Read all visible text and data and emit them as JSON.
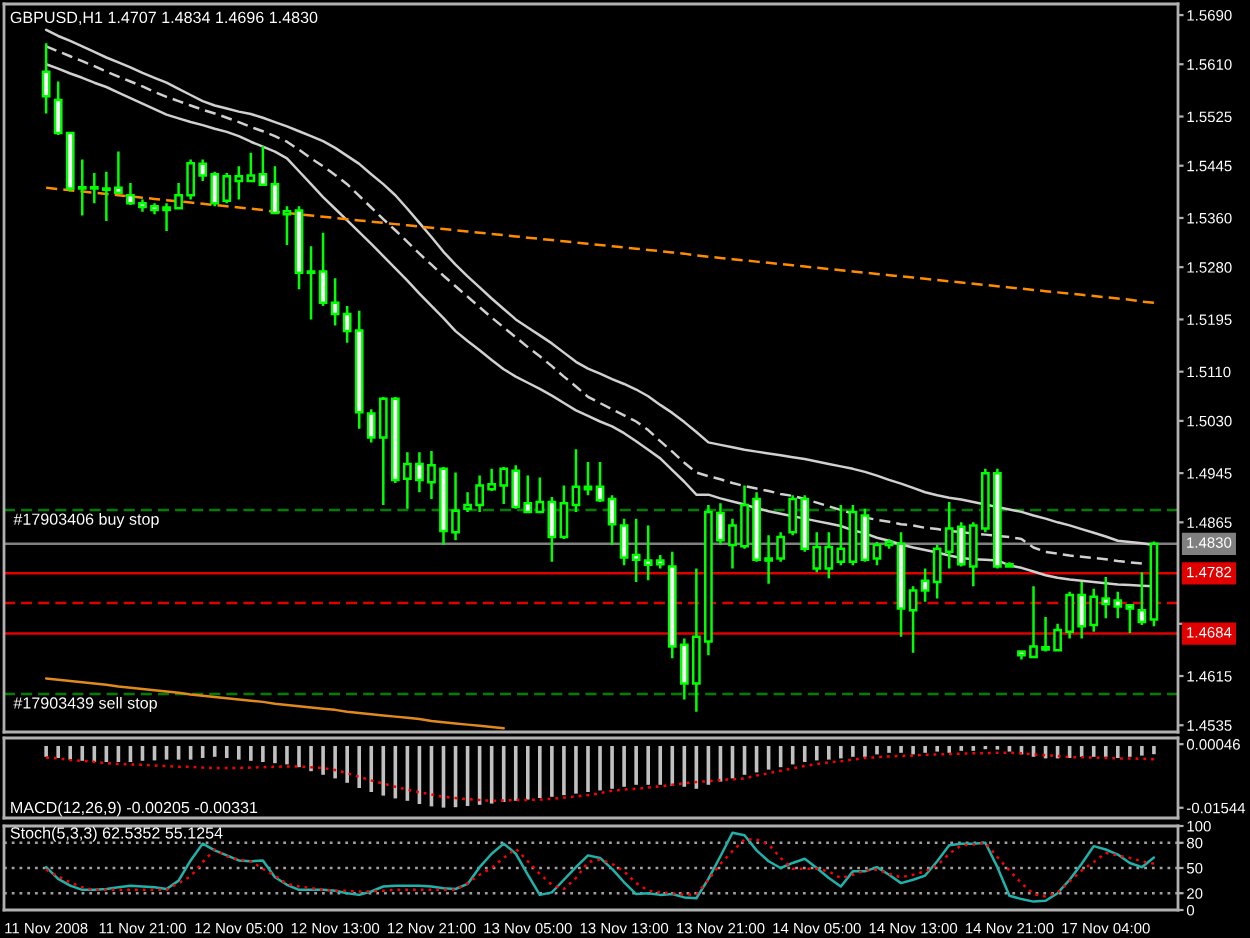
{
  "chart_data": [
    {
      "type": "candlestick",
      "title": "GBPUSD,H1 1.4707 1.4834 1.4696 1.4830",
      "categories": [
        null,
        null,
        null,
        null,
        null,
        null,
        null,
        null,
        null,
        null,
        null,
        null,
        null,
        null,
        null,
        null,
        null,
        null,
        null,
        null,
        null,
        null,
        null,
        null,
        null,
        null,
        null,
        null,
        null,
        null,
        null,
        null,
        null,
        null,
        null,
        null,
        null,
        null,
        null,
        null,
        null,
        null,
        null,
        null,
        null,
        null,
        null,
        null,
        null,
        null,
        null,
        null,
        null,
        null,
        null,
        null,
        null,
        null,
        null,
        null,
        null,
        null,
        null,
        null,
        null,
        null,
        null,
        null,
        null,
        null,
        null,
        null,
        null,
        null,
        null,
        null,
        null,
        null,
        null,
        null,
        null,
        null,
        null,
        null,
        null,
        null,
        null,
        null,
        null,
        null,
        null,
        null,
        null
      ],
      "ohlc": [
        [
          1.5598,
          1.5644,
          1.553,
          1.5558
        ],
        [
          1.5552,
          1.5582,
          1.5495,
          1.5498
        ],
        [
          1.5498,
          1.55,
          1.5403,
          1.5408
        ],
        [
          1.5408,
          1.5455,
          1.5364,
          1.541
        ],
        [
          1.541,
          1.5433,
          1.5384,
          1.5408
        ],
        [
          1.5408,
          1.5435,
          1.5355,
          1.5406
        ],
        [
          1.5409,
          1.5468,
          1.5399,
          1.5401
        ],
        [
          1.5397,
          1.5417,
          1.5381,
          1.5384
        ],
        [
          1.5384,
          1.539,
          1.537,
          1.5378
        ],
        [
          1.5379,
          1.5384,
          1.5366,
          1.5373
        ],
        [
          1.5377,
          1.5384,
          1.5339,
          1.5373
        ],
        [
          1.5376,
          1.5417,
          1.5374,
          1.5397
        ],
        [
          1.5397,
          1.5455,
          1.539,
          1.5449
        ],
        [
          1.5448,
          1.5455,
          1.542,
          1.5429
        ],
        [
          1.5431,
          1.5435,
          1.5379,
          1.5384
        ],
        [
          1.5388,
          1.5433,
          1.5384,
          1.5428
        ],
        [
          1.542,
          1.5444,
          1.539,
          1.5428
        ],
        [
          1.542,
          1.5466,
          1.5419,
          1.5429
        ],
        [
          1.5431,
          1.5477,
          1.5412,
          1.5414
        ],
        [
          1.5415,
          1.5444,
          1.5366,
          1.5368
        ],
        [
          1.5366,
          1.5379,
          1.5316,
          1.5371
        ],
        [
          1.5372,
          1.5379,
          1.5244,
          1.5271
        ],
        [
          1.5271,
          1.5314,
          1.5195,
          1.5273
        ],
        [
          1.5273,
          1.5336,
          1.5217,
          1.5222
        ],
        [
          1.5222,
          1.5262,
          1.5185,
          1.5204
        ],
        [
          1.5204,
          1.5217,
          1.5157,
          1.5176
        ],
        [
          1.5177,
          1.5209,
          1.5017,
          1.5044
        ],
        [
          1.5042,
          1.5049,
          1.4995,
          1.5003
        ],
        [
          1.5003,
          1.5069,
          1.4893,
          1.5066
        ],
        [
          1.5066,
          1.5069,
          1.4929,
          1.4934
        ],
        [
          1.4936,
          1.4979,
          1.4887,
          1.496
        ],
        [
          1.496,
          1.4979,
          1.4914,
          1.4934
        ],
        [
          1.493,
          1.4981,
          1.4903,
          1.4958
        ],
        [
          1.4952,
          1.4955,
          1.4828,
          1.4851
        ],
        [
          1.4849,
          1.4946,
          1.4836,
          1.4884
        ],
        [
          1.4887,
          1.4914,
          1.4882,
          1.4893
        ],
        [
          1.4893,
          1.4941,
          1.4882,
          1.4925
        ],
        [
          1.4919,
          1.4952,
          1.4916,
          1.4927
        ],
        [
          1.4925,
          1.4955,
          1.4895,
          1.4952
        ],
        [
          1.4949,
          1.4958,
          1.4887,
          1.489
        ],
        [
          1.4896,
          1.4941,
          1.488,
          1.4882
        ],
        [
          1.4882,
          1.4938,
          1.488,
          1.4898
        ],
        [
          1.4898,
          1.4906,
          1.4801,
          1.4841
        ],
        [
          1.4841,
          1.4925,
          1.4838,
          1.4896
        ],
        [
          1.4893,
          1.4984,
          1.4882,
          1.4923
        ],
        [
          1.4919,
          1.4963,
          1.4909,
          1.4923
        ],
        [
          1.4923,
          1.4963,
          1.4898,
          1.4901
        ],
        [
          1.4903,
          1.4909,
          1.4828,
          1.4862
        ],
        [
          1.486,
          1.4871,
          1.4795,
          1.4808
        ],
        [
          1.4812,
          1.4871,
          1.4768,
          1.4804
        ],
        [
          1.4803,
          1.486,
          1.4771,
          1.4796
        ],
        [
          1.4803,
          1.4812,
          1.479,
          1.4797
        ],
        [
          1.4793,
          1.4817,
          1.4644,
          1.4663
        ],
        [
          1.4666,
          1.4676,
          1.4577,
          1.4603
        ],
        [
          1.4603,
          1.479,
          1.4557,
          1.4679
        ],
        [
          1.4671,
          1.4893,
          1.4649,
          1.4882
        ],
        [
          1.488,
          1.4896,
          1.4828,
          1.4836
        ],
        [
          1.4828,
          1.4871,
          1.479,
          1.486
        ],
        [
          1.4826,
          1.4925,
          1.4822,
          1.4893
        ],
        [
          1.4903,
          1.4914,
          1.4801,
          1.4804
        ],
        [
          1.4806,
          1.4844,
          1.4765,
          1.4803
        ],
        [
          1.4806,
          1.4849,
          1.4801,
          1.4841
        ],
        [
          1.4849,
          1.4909,
          1.4844,
          1.4903
        ],
        [
          1.4903,
          1.4909,
          1.4817,
          1.4822
        ],
        [
          1.479,
          1.4849,
          1.4784,
          1.4825
        ],
        [
          1.479,
          1.4849,
          1.4774,
          1.4825
        ],
        [
          1.4801,
          1.4893,
          1.4795,
          1.4822
        ],
        [
          1.4801,
          1.4893,
          1.4795,
          1.4882
        ],
        [
          1.4876,
          1.4887,
          1.4801,
          1.4804
        ],
        [
          1.4806,
          1.4833,
          1.4795,
          1.4828
        ],
        [
          1.4828,
          1.4838,
          1.4822,
          1.4833
        ],
        [
          1.483,
          1.4849,
          1.4679,
          1.4725
        ],
        [
          1.4722,
          1.4761,
          1.4653,
          1.4754
        ],
        [
          1.477,
          1.479,
          1.4736,
          1.4754
        ],
        [
          1.4768,
          1.4828,
          1.4741,
          1.4822
        ],
        [
          1.4817,
          1.4898,
          1.479,
          1.4855
        ],
        [
          1.4858,
          1.4865,
          1.4793,
          1.4797
        ],
        [
          1.4793,
          1.4865,
          1.4761,
          1.486
        ],
        [
          1.4855,
          1.4952,
          1.4849,
          1.4945
        ],
        [
          1.4945,
          1.4952,
          1.479,
          1.4793
        ],
        [
          1.4797,
          1.48,
          1.4791,
          1.4793
        ],
        [
          1.4655,
          1.4657,
          1.4642,
          1.4649
        ],
        [
          1.4646,
          1.4761,
          1.4644,
          1.4663
        ],
        [
          1.4658,
          1.4711,
          1.4655,
          1.4662
        ],
        [
          1.4657,
          1.47,
          1.4655,
          1.469
        ],
        [
          1.4687,
          1.4752,
          1.4676,
          1.4747
        ],
        [
          1.4747,
          1.4768,
          1.4676,
          1.4696
        ],
        [
          1.4698,
          1.4757,
          1.4687,
          1.4744
        ],
        [
          1.4741,
          1.4776,
          1.4709,
          1.4732
        ],
        [
          1.4738,
          1.4752,
          1.4709,
          1.4728
        ],
        [
          1.473,
          1.4732,
          1.4685,
          1.4725
        ],
        [
          1.4722,
          1.4784,
          1.4698,
          1.4703
        ],
        [
          1.4707,
          1.4834,
          1.4696,
          1.483
        ]
      ],
      "color": "#00ff00",
      "colors": [
        "#ffffff",
        "#ffffff",
        "#ffffff",
        "#000000",
        "#ffffff",
        "#ffffff",
        "#ffffff",
        "#ffffff",
        "#ffffff",
        "#ffffff",
        "#ffffff",
        "#000000",
        "#000000",
        "#ffffff",
        "#ffffff",
        "#000000",
        "#000000",
        "#000000",
        "#ffffff",
        "#ffffff",
        "#000000",
        "#ffffff",
        "#000000",
        "#ffffff",
        "#ffffff",
        "#ffffff",
        "#ffffff",
        "#ffffff",
        "#000000",
        "#ffffff",
        "#000000",
        "#ffffff",
        "#000000",
        "#ffffff",
        "#000000",
        "#000000",
        "#000000",
        "#000000",
        "#000000",
        "#ffffff",
        "#ffffff",
        "#000000",
        "#ffffff",
        "#000000",
        "#000000",
        "#000000",
        "#ffffff",
        "#ffffff",
        "#ffffff",
        "#ffffff",
        "#ffffff",
        "#ffffff",
        "#ffffff",
        "#ffffff",
        "#000000",
        "#000000",
        "#ffffff",
        "#000000",
        "#000000",
        "#ffffff",
        "#ffffff",
        "#000000",
        "#000000",
        "#ffffff",
        "#000000",
        "#000000",
        "#000000",
        "#000000",
        "#ffffff",
        "#000000",
        "#000000",
        "#ffffff",
        "#000000",
        "#ffffff",
        "#000000",
        "#000000",
        "#ffffff",
        "#000000",
        "#000000",
        "#ffffff",
        "#ffffff",
        "#ffffff",
        "#000000",
        "#000000",
        "#000000",
        "#000000",
        "#ffffff",
        "#000000",
        "#ffffff",
        "#ffffff",
        "#ffffff",
        "#ffffff",
        "#000000"
      ],
      "series": [
        {
          "type": "line",
          "color": "#d0d0d0",
          "values": [
            1.5666,
            1.5656,
            1.5648,
            1.5639,
            1.563,
            1.5621,
            1.5613,
            1.5605,
            1.5596,
            1.5588,
            1.558,
            1.557,
            1.556,
            1.555,
            1.5543,
            1.5538,
            1.5533,
            1.5529,
            1.5523,
            1.5516,
            1.5509,
            1.5501,
            1.5493,
            1.5485,
            1.5474,
            1.5461,
            1.5448,
            1.5431,
            1.5415,
            1.5397,
            1.5375,
            1.5352,
            1.5329,
            1.5305,
            1.5284,
            1.5265,
            1.5247,
            1.5229,
            1.5212,
            1.5195,
            1.5182,
            1.5169,
            1.5156,
            1.5141,
            1.5126,
            1.5115,
            1.5107,
            1.5098,
            1.509,
            1.5081,
            1.507,
            1.5056,
            1.5043,
            1.5028,
            1.5012,
            1.4995,
            1.4991,
            1.4987,
            1.4983,
            1.498,
            1.4977,
            1.4974,
            1.4971,
            1.4968,
            1.4964,
            1.496,
            1.4956,
            1.4952,
            1.4947,
            1.4941,
            1.4934,
            1.4928,
            1.4921,
            1.4914,
            1.4909,
            1.4905,
            1.4902,
            1.4898,
            1.4894,
            1.489,
            1.4886,
            1.4882,
            1.4876,
            1.4871,
            1.4865,
            1.486,
            1.4854,
            1.4848,
            1.4842,
            1.4835,
            1.4833,
            1.4831,
            1.4828
          ]
        },
        {
          "type": "line",
          "color": "#d0d0d0",
          "line_style": "dashed",
          "values": [
            1.5639,
            1.5631,
            1.5623,
            1.5615,
            1.5607,
            1.5598,
            1.559,
            1.5582,
            1.5574,
            1.5565,
            1.5557,
            1.555,
            1.5543,
            1.5536,
            1.553,
            1.5523,
            1.5516,
            1.5508,
            1.5501,
            1.5493,
            1.5484,
            1.5471,
            1.5457,
            1.5444,
            1.543,
            1.5415,
            1.5396,
            1.5377,
            1.5358,
            1.534,
            1.5321,
            1.5302,
            1.5284,
            1.5266,
            1.5249,
            1.5232,
            1.5215,
            1.5198,
            1.5182,
            1.5166,
            1.515,
            1.5135,
            1.5119,
            1.5102,
            1.5086,
            1.5069,
            1.5059,
            1.5049,
            1.5039,
            1.5029,
            1.5015,
            1.4997,
            1.498,
            1.4962,
            1.4946,
            1.494,
            1.4935,
            1.4929,
            1.4924,
            1.492,
            1.4916,
            1.4911,
            1.4908,
            1.4903,
            1.4897,
            1.4891,
            1.4885,
            1.4879,
            1.4873,
            1.4869,
            1.4866,
            1.4862,
            1.486,
            1.4856,
            1.4854,
            1.4851,
            1.4849,
            1.4847,
            1.4845,
            1.4843,
            1.4841,
            1.4838,
            1.4824,
            1.4817,
            1.4814,
            1.4811,
            1.4809,
            1.4807,
            1.4805,
            1.4802,
            1.48,
            1.4798,
            null
          ]
        },
        {
          "type": "line",
          "color": "#d0d0d0",
          "values": [
            1.561,
            1.5603,
            1.5595,
            1.5588,
            1.558,
            1.5573,
            1.5564,
            1.5555,
            1.5546,
            1.5537,
            1.5528,
            1.5522,
            1.5516,
            1.5511,
            1.5505,
            1.55,
            1.5493,
            1.5484,
            1.5476,
            1.5468,
            1.5457,
            1.5436,
            1.5415,
            1.5394,
            1.5375,
            1.5356,
            1.5337,
            1.5318,
            1.5298,
            1.5278,
            1.5258,
            1.5237,
            1.5217,
            1.5197,
            1.5176,
            1.516,
            1.5145,
            1.5129,
            1.5114,
            1.5102,
            1.5092,
            1.5082,
            1.5071,
            1.5059,
            1.5047,
            1.5038,
            1.5029,
            1.5021,
            1.501,
            1.4997,
            1.4983,
            1.4969,
            1.495,
            1.4931,
            1.491,
            1.491,
            1.4904,
            1.4899,
            1.4894,
            1.4888,
            1.4883,
            1.4879,
            1.4875,
            1.4871,
            1.4867,
            1.4863,
            1.4859,
            1.4852,
            1.4847,
            1.484,
            1.4835,
            1.4829,
            1.4824,
            1.482,
            1.4816,
            1.4811,
            1.4807,
            1.4805,
            1.4804,
            1.4803,
            1.4795,
            1.4791,
            1.4785,
            1.4779,
            1.4775,
            1.4772,
            1.477,
            1.4768,
            1.4766,
            1.4764,
            1.4763,
            1.4762,
            1.4761
          ]
        },
        {
          "type": "line",
          "color": "#ff8c00",
          "line_style": "dashed",
          "values": [
            1.5409,
            1.5407,
            1.5405,
            1.5403,
            1.5401,
            1.5399,
            1.5397,
            1.5395,
            1.5393,
            1.5391,
            1.5389,
            1.5387,
            1.5385,
            1.5383,
            1.5381,
            1.5379,
            1.5377,
            1.5375,
            1.5373,
            1.537,
            1.5368,
            1.5366,
            1.5364,
            1.5362,
            1.536,
            1.5358,
            1.5356,
            1.5354,
            1.5352,
            1.535,
            1.5348,
            1.5346,
            1.5344,
            1.5342,
            1.534,
            1.5338,
            1.5336,
            1.5334,
            1.5332,
            1.533,
            1.5328,
            1.5326,
            1.5324,
            1.5322,
            1.532,
            1.5318,
            1.5316,
            1.5314,
            1.5312,
            1.531,
            1.5308,
            1.5306,
            1.5304,
            1.5302,
            1.5299,
            1.5297,
            1.5295,
            1.5293,
            1.5291,
            1.5289,
            1.5287,
            1.5285,
            1.5283,
            1.5281,
            1.5279,
            1.5277,
            1.5275,
            1.5273,
            1.5271,
            1.5269,
            1.5267,
            1.5265,
            1.5263,
            1.5261,
            1.5259,
            1.5257,
            1.5255,
            1.5253,
            1.5251,
            1.5249,
            1.5247,
            1.5245,
            1.5243,
            1.5241,
            1.5239,
            1.5237,
            1.5235,
            1.5233,
            1.5231,
            1.5229,
            1.5227,
            1.5224,
            1.5222
          ]
        },
        {
          "type": "line",
          "color": "#e08a1e",
          "values": [
            1.4611,
            1.4609,
            1.4607,
            1.4605,
            1.4603,
            1.4601,
            1.4598,
            1.4596,
            1.4594,
            1.4592,
            1.459,
            1.4588,
            1.4585,
            1.4583,
            1.4581,
            1.4579,
            1.4577,
            1.4575,
            1.4573,
            1.457,
            1.4568,
            1.4566,
            1.4564,
            1.4562,
            1.456,
            1.4557,
            1.4555,
            1.4553,
            1.4551,
            1.4549,
            1.4547,
            1.4545,
            1.4542,
            1.454,
            1.4538,
            1.4536,
            1.4534,
            1.4532,
            1.453,
            null,
            null,
            null,
            null,
            null,
            null,
            null,
            null,
            null,
            null,
            null,
            null,
            null,
            null,
            null,
            null,
            null,
            null,
            null,
            null,
            null,
            null,
            null,
            null,
            null,
            null,
            null,
            null,
            null,
            null,
            null,
            null,
            null,
            null,
            null,
            null,
            null,
            null,
            null,
            null,
            null,
            null,
            null,
            null,
            null,
            null,
            null,
            null,
            null,
            null,
            null,
            null,
            null,
            null
          ]
        }
      ],
      "ylim": [
        1.4524,
        1.5708
      ],
      "yticks": [
        {
          "value": 1.569,
          "label": "1.5690"
        },
        {
          "value": 1.561,
          "label": "1.5610"
        },
        1.5525,
        1.5445,
        {
          "value": 1.536,
          "label": "1.5360"
        },
        {
          "value": 1.528,
          "label": "1.5280"
        },
        1.5195,
        {
          "value": 1.511,
          "label": "1.5110"
        },
        {
          "value": 1.503,
          "label": "1.5030"
        },
        1.4945,
        1.4865,
        {
          "value": 1.47,
          "label": null
        },
        1.4615,
        1.4535
      ],
      "ref_lines": [
        {
          "axis": "y",
          "value": 1.4885,
          "label": "#17903406 buy stop",
          "color": "#008000",
          "line_style": "dashed"
        },
        {
          "axis": "y",
          "value": 1.483,
          "label": "1.4830",
          "color": "#808080"
        },
        {
          "axis": "y",
          "value": 1.4782,
          "label": "1.4782",
          "color": "#e00000"
        },
        {
          "axis": "y",
          "value": 1.4734,
          "color": "#e00000",
          "line_style": "dashed"
        },
        {
          "axis": "y",
          "value": 1.4684,
          "label": "1.4684",
          "color": "#e00000"
        },
        {
          "axis": "y",
          "value": 1.4586,
          "label": "#17903439 sell stop",
          "color": "#008000",
          "line_style": "dashed"
        }
      ],
      "tick_labels": "y"
    },
    {
      "type": "bar",
      "title": "MACD(12,26,9) -0.00205 -0.00331",
      "categories": [
        null,
        null,
        null,
        null,
        null,
        null,
        null,
        null,
        null,
        null,
        null,
        null,
        null,
        null,
        null,
        null,
        null,
        null,
        null,
        null,
        null,
        null,
        null,
        null,
        null,
        null,
        null,
        null,
        null,
        null,
        null,
        null,
        null,
        null,
        null,
        null,
        null,
        null,
        null,
        null,
        null,
        null,
        null,
        null,
        null,
        null,
        null,
        null,
        null,
        null,
        null,
        null,
        null,
        null,
        null,
        null,
        null,
        null,
        null,
        null,
        null,
        null,
        null,
        null,
        null,
        null,
        null,
        null,
        null,
        null,
        null,
        null,
        null,
        null,
        null,
        null,
        null,
        null,
        null,
        null,
        null,
        null,
        null,
        null,
        null,
        null,
        null,
        null,
        null,
        null,
        null,
        null,
        null
      ],
      "series": [
        {
          "type": "bar",
          "color": "#c0c0c0",
          "values": [
            -0.0027,
            -0.003,
            -0.0034,
            -0.0037,
            -0.004,
            -0.004,
            -0.004,
            -0.004,
            -0.0037,
            -0.0036,
            -0.0034,
            -0.0034,
            -0.0034,
            -0.003,
            -0.0027,
            -0.003,
            -0.0034,
            -0.0037,
            -0.004,
            -0.0043,
            -0.0046,
            -0.0053,
            -0.0063,
            -0.0072,
            -0.0081,
            -0.0092,
            -0.0105,
            -0.0115,
            -0.0124,
            -0.0131,
            -0.0137,
            -0.0145,
            -0.0151,
            -0.0154,
            -0.0153,
            -0.015,
            -0.0147,
            -0.0144,
            -0.014,
            -0.0137,
            -0.0134,
            -0.013,
            -0.0127,
            -0.0123,
            -0.0119,
            -0.0115,
            -0.0111,
            -0.0107,
            -0.0102,
            -0.0097,
            -0.0097,
            -0.0097,
            -0.01,
            -0.0102,
            -0.0107,
            -0.0097,
            -0.0089,
            -0.0081,
            -0.0072,
            -0.0066,
            -0.0059,
            -0.0053,
            -0.0046,
            -0.004,
            -0.0036,
            -0.0034,
            -0.0031,
            -0.0027,
            -0.0027,
            -0.0021,
            -0.0017,
            -0.0017,
            -0.0021,
            -0.0017,
            -0.0014,
            -0.0017,
            -0.0012,
            -0.0012,
            -0.0008,
            -0.0009,
            -0.0014,
            -0.0021,
            -0.0027,
            -0.0031,
            -0.0031,
            -0.003,
            -0.0027,
            -0.0027,
            -0.0027,
            -0.003,
            -0.0027,
            -0.0024,
            -0.00205
          ]
        },
        {
          "type": "line",
          "color": "#ff0000",
          "line_style": "dotted",
          "values": [
            -0.0029,
            -0.0031,
            -0.0035,
            -0.0037,
            -0.004,
            -0.0043,
            -0.0045,
            -0.0046,
            -0.0047,
            -0.0049,
            -0.005,
            -0.0052,
            -0.0052,
            -0.0054,
            -0.0055,
            -0.0055,
            -0.0055,
            -0.0054,
            -0.0053,
            -0.0052,
            -0.0051,
            -0.0051,
            -0.0053,
            -0.0055,
            -0.006,
            -0.0068,
            -0.0077,
            -0.0086,
            -0.0094,
            -0.0102,
            -0.0109,
            -0.0116,
            -0.0121,
            -0.0127,
            -0.013,
            -0.0133,
            -0.0135,
            -0.0137,
            -0.0136,
            -0.0135,
            -0.0135,
            -0.0134,
            -0.0132,
            -0.0129,
            -0.0126,
            -0.0123,
            -0.0118,
            -0.0112,
            -0.0109,
            -0.0107,
            -0.0104,
            -0.0101,
            -0.0097,
            -0.0093,
            -0.009,
            -0.0088,
            -0.0085,
            -0.0083,
            -0.0081,
            -0.0074,
            -0.0068,
            -0.0062,
            -0.0056,
            -0.005,
            -0.0045,
            -0.0041,
            -0.0038,
            -0.0034,
            -0.003,
            -0.0028,
            -0.0026,
            -0.0025,
            -0.0024,
            -0.0022,
            -0.0021,
            -0.002,
            -0.0019,
            -0.0018,
            -0.0018,
            -0.0017,
            -0.0017,
            -0.0018,
            -0.0021,
            -0.0023,
            -0.0025,
            -0.0028,
            -0.0028,
            -0.0029,
            -0.003,
            -0.0031,
            -0.0031,
            -0.0032,
            -0.00331
          ]
        }
      ],
      "ylim": [
        -0.018,
        0.002
      ],
      "yticks": [
        -0.01544,
        0.00046
      ],
      "tick_labels": "y"
    },
    {
      "type": "line",
      "title": "Stoch(5,3,3) 62.5352 55.1254",
      "categories": [
        "11 Nov 2008",
        null,
        null,
        null,
        null,
        null,
        null,
        null,
        "11 Nov 21:00",
        null,
        null,
        null,
        null,
        null,
        null,
        null,
        "12 Nov 05:00",
        null,
        null,
        null,
        null,
        null,
        null,
        null,
        "12 Nov 13:00",
        null,
        null,
        null,
        null,
        null,
        null,
        null,
        "12 Nov 21:00",
        null,
        null,
        null,
        null,
        null,
        null,
        null,
        "13 Nov 05:00",
        null,
        null,
        null,
        null,
        null,
        null,
        null,
        "13 Nov 13:00",
        null,
        null,
        null,
        null,
        null,
        null,
        null,
        "13 Nov 21:00",
        null,
        null,
        null,
        null,
        null,
        null,
        null,
        "14 Nov 05:00",
        null,
        null,
        null,
        null,
        null,
        null,
        null,
        "14 Nov 13:00",
        null,
        null,
        null,
        null,
        null,
        null,
        null,
        "14 Nov 21:00",
        null,
        null,
        null,
        null,
        null,
        null,
        null,
        "17 Nov 04:00",
        null,
        null,
        null,
        null
      ],
      "series": [
        {
          "type": "line",
          "color": "#20b2aa",
          "values": [
            51,
            37,
            29,
            24,
            24,
            25,
            27,
            29,
            28,
            27,
            25,
            35,
            59,
            79,
            71,
            65,
            59,
            58,
            59,
            39,
            30,
            24,
            24,
            24,
            23,
            20,
            18,
            22,
            28,
            29,
            29,
            29,
            28,
            26,
            25,
            31,
            51,
            67,
            79,
            67,
            42,
            18,
            21,
            36,
            51,
            65,
            62,
            49,
            33,
            19,
            20,
            18,
            19,
            15,
            14,
            37,
            64,
            92,
            89,
            71,
            58,
            50,
            56,
            61,
            50,
            38,
            28,
            46,
            46,
            51,
            42,
            32,
            36,
            41,
            58,
            77,
            79,
            79,
            80,
            51,
            17,
            13,
            10,
            11,
            20,
            36,
            55,
            76,
            72,
            66,
            56,
            51,
            62.5352
          ]
        },
        {
          "type": "line",
          "color": "#ff0000",
          "line_style": "dotted",
          "values": [
            48,
            40,
            33,
            27,
            24,
            24,
            24,
            24,
            24,
            24,
            24,
            32,
            40,
            57,
            72,
            64,
            60,
            58,
            49,
            41,
            31,
            28,
            26,
            24,
            23,
            23,
            22,
            22,
            23,
            24,
            24,
            24,
            24,
            24,
            24,
            32,
            42,
            50,
            62,
            73,
            58,
            43,
            30,
            25,
            38,
            57,
            60,
            55,
            46,
            32,
            23,
            21,
            20,
            18,
            19,
            36,
            55,
            70,
            84,
            84,
            78,
            62,
            49,
            49,
            49,
            46,
            38,
            42,
            47,
            48,
            43,
            39,
            42,
            46,
            53,
            67,
            77,
            78,
            80,
            63,
            47,
            32,
            19,
            16,
            21,
            34,
            47,
            57,
            68,
            65,
            62,
            58,
            55.1254
          ]
        }
      ],
      "ylim": [
        0,
        100
      ],
      "yticks": [
        0,
        20,
        50,
        80,
        100
      ],
      "ref_lines": [
        {
          "axis": "y",
          "value": 80,
          "color": "#a0a0a0",
          "line_style": "dotted"
        },
        {
          "axis": "y",
          "value": 50,
          "color": "#a0a0a0",
          "line_style": "dotted"
        },
        {
          "axis": "y",
          "value": 20,
          "color": "#a0a0a0",
          "line_style": "dotted"
        }
      ]
    }
  ]
}
